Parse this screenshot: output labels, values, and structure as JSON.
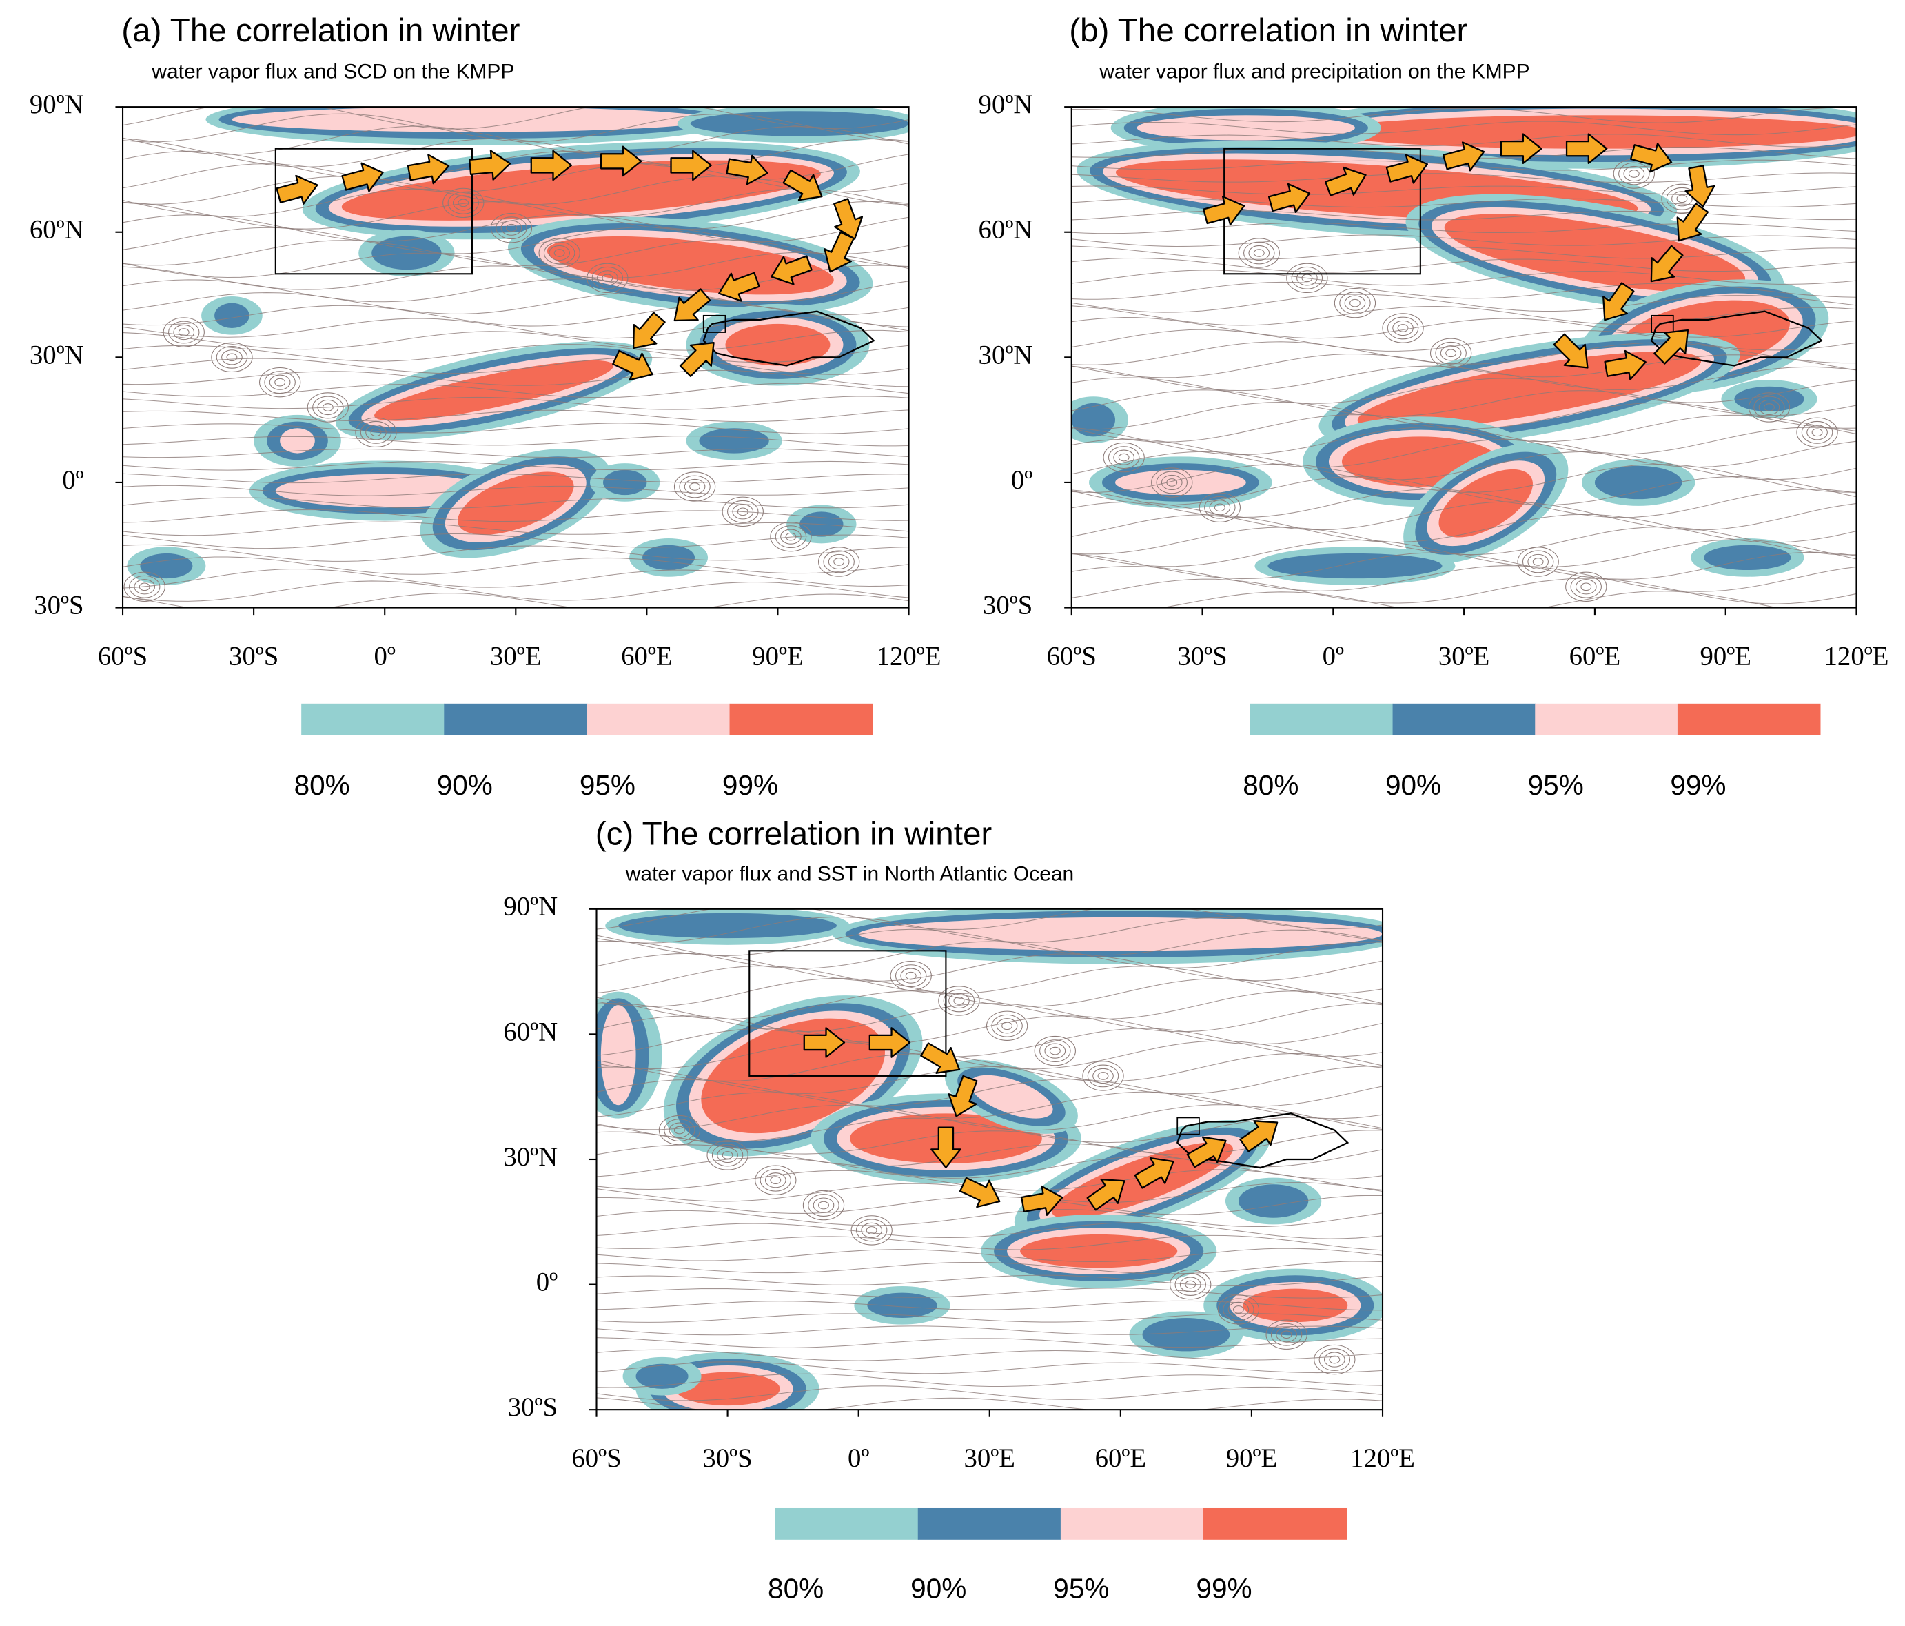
{
  "panels": [
    {
      "title": "(a) The correlation in winter",
      "subtitle": "water vapor flux and SCD on the KMPP",
      "xlim": [
        -60,
        120
      ],
      "ylim": [
        -30,
        90
      ],
      "xticks": [
        {
          "value": -60,
          "label": "60ºS"
        },
        {
          "value": -30,
          "label": "30ºS"
        },
        {
          "value": 0,
          "label": "0º"
        },
        {
          "value": 30,
          "label": "30ºE"
        },
        {
          "value": 60,
          "label": "60ºE"
        },
        {
          "value": 90,
          "label": "90ºE"
        },
        {
          "value": 120,
          "label": "120ºE"
        }
      ],
      "yticks": [
        {
          "value": -30,
          "label": "30ºS"
        },
        {
          "value": 0,
          "label": "0º"
        },
        {
          "value": 30,
          "label": "30ºN"
        },
        {
          "value": 60,
          "label": "60ºN"
        },
        {
          "value": 90,
          "label": "90ºN"
        }
      ],
      "colorbar": {
        "colors": [
          "#94d0d0",
          "#4a82ab",
          "#fdd2d2",
          "#f46b55"
        ],
        "ticks": [
          {
            "value": 80,
            "label": "80%"
          },
          {
            "value": 90,
            "label": "90%"
          },
          {
            "value": 95,
            "label": "95%"
          },
          {
            "value": 99,
            "label": "99%"
          }
        ]
      }
    },
    {
      "title": "(b) The correlation in winter",
      "subtitle": "water vapor flux and precipitation on the KMPP",
      "xlim": [
        -60,
        120
      ],
      "ylim": [
        -30,
        90
      ],
      "xticks": [
        {
          "value": -60,
          "label": "60ºS"
        },
        {
          "value": -30,
          "label": "30ºS"
        },
        {
          "value": 0,
          "label": "0º"
        },
        {
          "value": 30,
          "label": "30ºE"
        },
        {
          "value": 60,
          "label": "60ºE"
        },
        {
          "value": 90,
          "label": "90ºE"
        },
        {
          "value": 120,
          "label": "120ºE"
        }
      ],
      "yticks": [
        {
          "value": -30,
          "label": "30ºS"
        },
        {
          "value": 0,
          "label": "0º"
        },
        {
          "value": 30,
          "label": "30ºN"
        },
        {
          "value": 60,
          "label": "60ºN"
        },
        {
          "value": 90,
          "label": "90ºN"
        }
      ],
      "colorbar": {
        "colors": [
          "#94d0d0",
          "#4a82ab",
          "#fdd2d2",
          "#f46b55"
        ],
        "ticks": [
          {
            "value": 80,
            "label": "80%"
          },
          {
            "value": 90,
            "label": "90%"
          },
          {
            "value": 95,
            "label": "95%"
          },
          {
            "value": 99,
            "label": "99%"
          }
        ]
      }
    },
    {
      "title": "(c) The correlation in winter",
      "subtitle": "water vapor flux and SST in North Atlantic Ocean",
      "xlim": [
        -60,
        120
      ],
      "ylim": [
        -30,
        90
      ],
      "xticks": [
        {
          "value": -60,
          "label": "60ºS"
        },
        {
          "value": -30,
          "label": "30ºS"
        },
        {
          "value": 0,
          "label": "0º"
        },
        {
          "value": 30,
          "label": "30ºE"
        },
        {
          "value": 60,
          "label": "60ºE"
        },
        {
          "value": 90,
          "label": "90ºE"
        },
        {
          "value": 120,
          "label": "120ºE"
        }
      ],
      "yticks": [
        {
          "value": -30,
          "label": "30ºS"
        },
        {
          "value": 0,
          "label": "0º"
        },
        {
          "value": 30,
          "label": "30ºN"
        },
        {
          "value": 60,
          "label": "60ºN"
        },
        {
          "value": 90,
          "label": "90ºN"
        }
      ],
      "colorbar": {
        "colors": [
          "#94d0d0",
          "#4a82ab",
          "#fdd2d2",
          "#f46b55"
        ],
        "ticks": [
          {
            "value": 80,
            "label": "80%"
          },
          {
            "value": 90,
            "label": "90%"
          },
          {
            "value": 95,
            "label": "95%"
          },
          {
            "value": 99,
            "label": "99%"
          }
        ]
      }
    }
  ]
}
